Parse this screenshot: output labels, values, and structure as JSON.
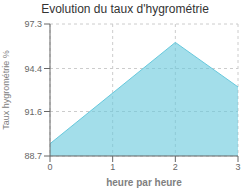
{
  "chart_data": {
    "type": "area",
    "title": "Evolution du taux d'hygrométrie",
    "xlabel": "heure par heure",
    "ylabel": "Taux hygrométrie %",
    "x": [
      0,
      2,
      3
    ],
    "values": [
      89.5,
      96.1,
      93.2
    ],
    "color": "#66c8dc",
    "xlim": [
      0,
      3
    ],
    "xticks": [
      0,
      1,
      2,
      3
    ],
    "ylim": [
      88.7,
      97.3
    ],
    "yticks": [
      88.7,
      91.6,
      94.4,
      97.3
    ],
    "grid": true
  }
}
